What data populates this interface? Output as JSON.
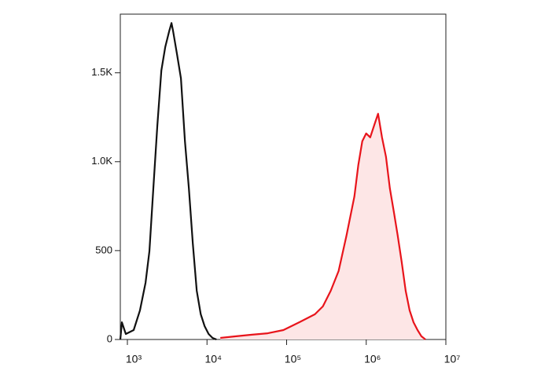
{
  "chart_data": {
    "type": "line",
    "xscale": "log",
    "xlim": [
      815,
      10000000
    ],
    "ylim": [
      0,
      1830
    ],
    "xticks": [
      {
        "value": 1000,
        "label": "10³"
      },
      {
        "value": 10000,
        "label": "10⁴"
      },
      {
        "value": 100000,
        "label": "10⁵"
      },
      {
        "value": 1000000,
        "label": "10⁶"
      },
      {
        "value": 10000000,
        "label": "10⁷"
      }
    ],
    "yticks": [
      0,
      500,
      {
        "value": 1000,
        "label": "1.0K"
      },
      {
        "value": 1500,
        "label": "1.5K"
      }
    ],
    "series": [
      {
        "color": "#111111",
        "fill": null,
        "x": [
          815,
          853,
          955,
          1200,
          1440,
          1690,
          1890,
          2120,
          2380,
          2670,
          2990,
          3350,
          3580,
          3750,
          4210,
          4710,
          5280,
          5920,
          6640,
          7430,
          8340,
          9340,
          10470,
          11730,
          13150
        ],
        "values": [
          0,
          97,
          31,
          53,
          164,
          319,
          496,
          850,
          1204,
          1513,
          1646,
          1735,
          1780,
          1735,
          1602,
          1469,
          1115,
          850,
          540,
          274,
          142,
          75,
          31,
          9,
          0
        ]
      },
      {
        "color": "#e8141b",
        "fill": "#fde6e6",
        "x": [
          14720,
          23220,
          36650,
          57810,
          91200,
          143900,
          227000,
          285100,
          358100,
          449800,
          565000,
          709600,
          796000,
          891300,
          1000000,
          1122000,
          1256000,
          1409000,
          1578000,
          1770000,
          1982000,
          2223000,
          2489000,
          2793000,
          3126000,
          3508000,
          3926000,
          4406000,
          4932000,
          5534000
        ],
        "values": [
          9,
          18,
          27,
          35,
          53,
          97,
          142,
          186,
          274,
          385,
          584,
          805,
          982,
          1115,
          1159,
          1137,
          1204,
          1270,
          1137,
          1027,
          850,
          717,
          584,
          434,
          274,
          164,
          97,
          53,
          18,
          0
        ]
      }
    ]
  }
}
